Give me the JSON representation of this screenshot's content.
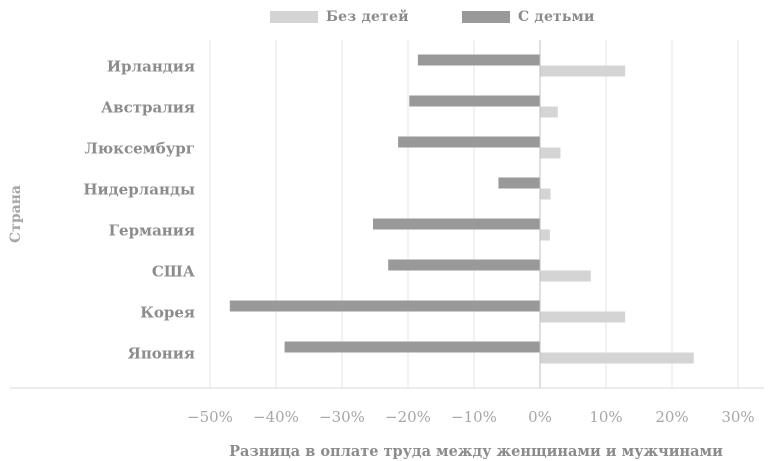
{
  "chart_data": {
    "type": "bar",
    "orientation": "horizontal",
    "categories": [
      "Ирландия",
      "Австралия",
      "Люксембург",
      "Нидерланды",
      "Германия",
      "США",
      "Корея",
      "Япония"
    ],
    "series": [
      {
        "name": "С детьми",
        "color": "#999999",
        "values": [
          -18.5,
          -19.8,
          -21.5,
          -6.3,
          -25.3,
          -23.0,
          -47.0,
          -38.7
        ]
      },
      {
        "name": "Без детей",
        "color": "#d4d4d4",
        "values": [
          12.9,
          2.7,
          3.1,
          1.6,
          1.5,
          7.7,
          12.9,
          23.3
        ]
      }
    ],
    "legend_order": [
      "Без детей",
      "С детьми"
    ],
    "xlim": [
      -50,
      30
    ],
    "xticks": [
      -50,
      -40,
      -30,
      -20,
      -10,
      0,
      10,
      20,
      30
    ],
    "xtick_labels": [
      "−50%",
      "−40%",
      "−30%",
      "−20%",
      "−10%",
      "0%",
      "10%",
      "20%",
      "30%"
    ],
    "xlabel": "Разница в оплате труда между женщинами и мужчинами",
    "ylabel": "Страна",
    "grid": "vertical",
    "legend_position": "top"
  }
}
